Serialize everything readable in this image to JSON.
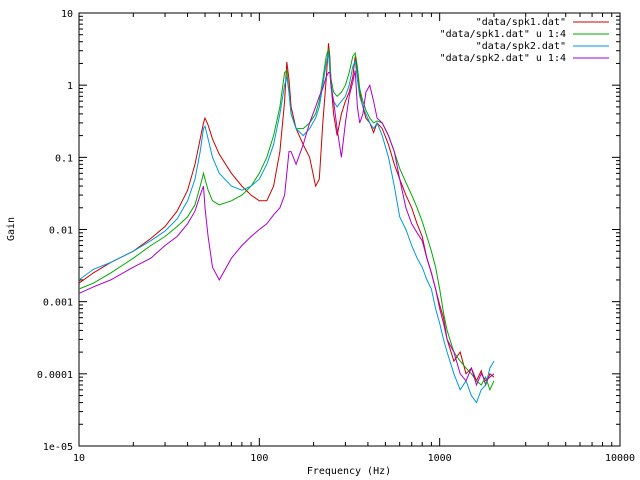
{
  "chart_data": {
    "type": "line",
    "title": "",
    "xlabel": "Frequency (Hz)",
    "ylabel": "Gain",
    "xscale": "log",
    "yscale": "log",
    "xlim": [
      10,
      10000
    ],
    "ylim": [
      1e-05,
      10
    ],
    "grid": false,
    "legend_position": "top-right",
    "x_ticks": [
      10,
      100,
      1000,
      10000
    ],
    "x_tick_labels": [
      "10",
      "100",
      "1000",
      "10000"
    ],
    "y_ticks": [
      1e-05,
      0.0001,
      0.001,
      0.01,
      0.1,
      1,
      10
    ],
    "y_tick_labels": [
      "1e-05",
      "0.0001",
      "0.001",
      "0.01",
      "0.1",
      "1",
      "10"
    ],
    "series": [
      {
        "name": "\"data/spk1.dat\"",
        "color": "#cc0000",
        "x": [
          10,
          12,
          15,
          20,
          25,
          30,
          35,
          40,
          44,
          47,
          49,
          50,
          52,
          55,
          60,
          70,
          80,
          90,
          100,
          110,
          120,
          130,
          138,
          142,
          146,
          150,
          160,
          175,
          190,
          205,
          215,
          225,
          235,
          242,
          246,
          250,
          258,
          270,
          285,
          300,
          315,
          330,
          340,
          350,
          360,
          375,
          390,
          410,
          430,
          450,
          480,
          520,
          560,
          600,
          650,
          700,
          750,
          800,
          850,
          900,
          950,
          1000,
          1050,
          1100,
          1200,
          1300,
          1400,
          1500,
          1600,
          1700,
          1800,
          1900,
          2000
        ],
        "values": [
          0.0018,
          0.0025,
          0.0035,
          0.005,
          0.0075,
          0.011,
          0.018,
          0.035,
          0.08,
          0.18,
          0.3,
          0.35,
          0.28,
          0.18,
          0.11,
          0.06,
          0.04,
          0.03,
          0.025,
          0.025,
          0.04,
          0.12,
          0.6,
          2.1,
          1.2,
          0.5,
          0.25,
          0.15,
          0.1,
          0.04,
          0.05,
          0.3,
          1.2,
          3.8,
          2.5,
          1.0,
          0.4,
          0.2,
          0.4,
          0.6,
          0.8,
          1.3,
          2.5,
          1.6,
          0.8,
          0.5,
          0.35,
          0.3,
          0.22,
          0.3,
          0.25,
          0.15,
          0.08,
          0.05,
          0.03,
          0.02,
          0.012,
          0.008,
          0.004,
          0.0025,
          0.0015,
          0.0009,
          0.0006,
          0.0003,
          0.00015,
          0.0002,
          0.0001,
          0.00012,
          8e-05,
          0.00011,
          7e-05,
          0.0001,
          9e-05
        ]
      },
      {
        "name": "\"data/spk1.dat\" u 1:4",
        "color": "#00aa00",
        "x": [
          10,
          12,
          15,
          20,
          25,
          30,
          35,
          40,
          44,
          47,
          49,
          50,
          52,
          55,
          60,
          70,
          80,
          90,
          100,
          110,
          120,
          130,
          138,
          142,
          146,
          150,
          160,
          175,
          190,
          205,
          215,
          225,
          235,
          242,
          246,
          250,
          258,
          270,
          285,
          300,
          315,
          330,
          340,
          350,
          360,
          375,
          390,
          410,
          430,
          450,
          480,
          520,
          560,
          600,
          650,
          700,
          750,
          800,
          850,
          900,
          950,
          1000,
          1050,
          1100,
          1200,
          1300,
          1400,
          1500,
          1600,
          1700,
          1800,
          1900,
          2000
        ],
        "values": [
          0.0015,
          0.0018,
          0.0025,
          0.004,
          0.006,
          0.008,
          0.011,
          0.015,
          0.022,
          0.04,
          0.06,
          0.05,
          0.035,
          0.025,
          0.022,
          0.025,
          0.03,
          0.04,
          0.06,
          0.1,
          0.2,
          0.5,
          1.5,
          1.6,
          0.8,
          0.4,
          0.25,
          0.25,
          0.3,
          0.4,
          0.6,
          1.2,
          2.5,
          3.2,
          2.0,
          1.2,
          0.8,
          0.7,
          0.8,
          1.0,
          1.5,
          2.5,
          2.8,
          1.8,
          0.9,
          0.6,
          0.45,
          0.35,
          0.3,
          0.32,
          0.3,
          0.2,
          0.12,
          0.07,
          0.045,
          0.03,
          0.02,
          0.013,
          0.008,
          0.005,
          0.003,
          0.0015,
          0.0007,
          0.0004,
          0.0002,
          0.00015,
          0.00012,
          0.0001,
          8e-05,
          7e-05,
          9e-05,
          6e-05,
          8e-05
        ]
      },
      {
        "name": "\"data/spk2.dat\"",
        "color": "#0099dd",
        "x": [
          10,
          12,
          15,
          20,
          25,
          30,
          35,
          40,
          44,
          47,
          49,
          50,
          52,
          55,
          60,
          70,
          80,
          90,
          100,
          110,
          120,
          130,
          138,
          142,
          146,
          150,
          160,
          175,
          190,
          205,
          215,
          225,
          235,
          242,
          246,
          250,
          258,
          270,
          285,
          300,
          315,
          330,
          340,
          350,
          360,
          375,
          390,
          410,
          430,
          450,
          480,
          520,
          560,
          600,
          650,
          700,
          750,
          800,
          850,
          900,
          950,
          1000,
          1050,
          1100,
          1200,
          1300,
          1400,
          1500,
          1600,
          1700,
          1800,
          1900,
          2000
        ],
        "values": [
          0.002,
          0.0028,
          0.0035,
          0.005,
          0.007,
          0.0095,
          0.014,
          0.025,
          0.05,
          0.12,
          0.25,
          0.27,
          0.18,
          0.1,
          0.06,
          0.04,
          0.035,
          0.04,
          0.05,
          0.08,
          0.15,
          0.4,
          1.0,
          1.3,
          0.8,
          0.4,
          0.25,
          0.2,
          0.25,
          0.35,
          0.5,
          1.0,
          2.0,
          2.8,
          1.6,
          0.9,
          0.6,
          0.5,
          0.6,
          0.7,
          1.0,
          1.8,
          2.2,
          1.2,
          0.7,
          0.5,
          0.4,
          0.3,
          0.25,
          0.3,
          0.2,
          0.1,
          0.04,
          0.015,
          0.01,
          0.006,
          0.004,
          0.003,
          0.002,
          0.0015,
          0.0008,
          0.0005,
          0.0003,
          0.0002,
          0.0001,
          6e-05,
          8e-05,
          5e-05,
          4e-05,
          6e-05,
          7e-05,
          0.00012,
          0.00015
        ]
      },
      {
        "name": "\"data/spk2.dat\" u 1:4",
        "color": "#aa00cc",
        "x": [
          10,
          12,
          15,
          20,
          25,
          30,
          35,
          40,
          44,
          47,
          49,
          50,
          52,
          55,
          60,
          70,
          80,
          90,
          100,
          110,
          120,
          130,
          138,
          142,
          146,
          150,
          160,
          175,
          190,
          205,
          215,
          225,
          235,
          242,
          246,
          250,
          258,
          270,
          285,
          300,
          315,
          330,
          340,
          350,
          360,
          375,
          390,
          410,
          430,
          450,
          480,
          520,
          560,
          600,
          650,
          700,
          750,
          800,
          850,
          900,
          950,
          1000,
          1050,
          1100,
          1200,
          1300,
          1400,
          1500,
          1600,
          1700,
          1800,
          1900,
          2000
        ],
        "values": [
          0.0013,
          0.0016,
          0.002,
          0.003,
          0.004,
          0.006,
          0.008,
          0.012,
          0.018,
          0.03,
          0.04,
          0.02,
          0.008,
          0.003,
          0.002,
          0.004,
          0.006,
          0.008,
          0.01,
          0.012,
          0.016,
          0.02,
          0.03,
          0.06,
          0.12,
          0.12,
          0.08,
          0.15,
          0.3,
          0.5,
          0.7,
          0.9,
          1.3,
          1.5,
          1.5,
          1.0,
          0.6,
          0.25,
          0.1,
          0.3,
          0.7,
          1.1,
          1.6,
          0.5,
          0.3,
          0.4,
          0.8,
          1.0,
          0.6,
          0.35,
          0.3,
          0.2,
          0.12,
          0.05,
          0.02,
          0.012,
          0.009,
          0.007,
          0.004,
          0.0025,
          0.0015,
          0.0008,
          0.0005,
          0.0003,
          0.0002,
          0.0001,
          8e-05,
          0.00012,
          7e-05,
          0.0001,
          8e-05,
          9e-05,
          0.0001
        ]
      }
    ]
  }
}
